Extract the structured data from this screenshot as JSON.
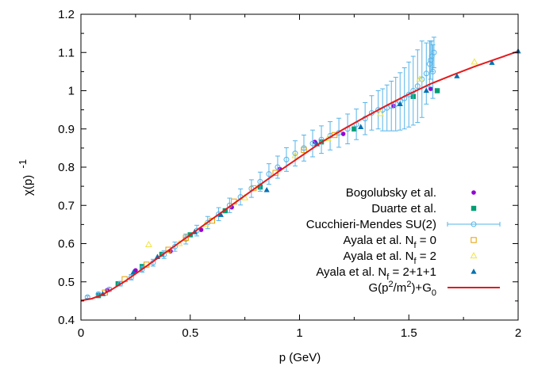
{
  "chart_data": {
    "type": "scatter",
    "xlabel": "p (GeV)",
    "ylabel_main": "χ(p)",
    "ylabel_sup": "-1",
    "xlim": [
      0,
      2
    ],
    "ylim": [
      0.4,
      1.2
    ],
    "x_ticks": [
      "0",
      "0.5",
      "1",
      "1.5",
      "2"
    ],
    "y_ticks": [
      "0.4",
      "0.5",
      "0.6",
      "0.7",
      "0.8",
      "0.9",
      "1",
      "1.1",
      "1.2"
    ],
    "grid": false,
    "legend_position": "bottom-right",
    "series": [
      {
        "name": "Bogolubsky et al.",
        "marker": "filled-circle",
        "color": "#9400d3",
        "points": [
          [
            0.12,
            0.478
          ],
          [
            0.25,
            0.53
          ],
          [
            0.41,
            0.58
          ],
          [
            0.55,
            0.636
          ],
          [
            0.69,
            0.695
          ],
          [
            0.91,
            0.795
          ],
          [
            1.07,
            0.866
          ],
          [
            1.2,
            0.887
          ],
          [
            1.43,
            0.96
          ],
          [
            1.6,
            1.005
          ]
        ]
      },
      {
        "name": "Duarte et al.",
        "marker": "filled-square",
        "color": "#009e73",
        "points": [
          [
            0.08,
            0.464
          ],
          [
            0.17,
            0.495
          ],
          [
            0.28,
            0.54
          ],
          [
            0.37,
            0.572
          ],
          [
            0.5,
            0.623
          ],
          [
            0.66,
            0.686
          ],
          [
            0.82,
            0.748
          ],
          [
            1.1,
            0.866
          ],
          [
            1.25,
            0.9
          ],
          [
            1.52,
            0.985
          ],
          [
            1.63,
            1.0
          ]
        ]
      },
      {
        "name": "Cucchieri-Mendes SU(2)",
        "marker": "open-circle",
        "color": "#56b4e9",
        "error_bars": true,
        "points": [
          [
            0.03,
            0.46,
            0.003
          ],
          [
            0.08,
            0.468,
            0.004
          ],
          [
            0.13,
            0.48,
            0.005
          ],
          [
            0.18,
            0.495,
            0.006
          ],
          [
            0.23,
            0.512,
            0.007
          ],
          [
            0.28,
            0.533,
            0.008
          ],
          [
            0.33,
            0.55,
            0.009
          ],
          [
            0.38,
            0.571,
            0.01
          ],
          [
            0.43,
            0.592,
            0.012
          ],
          [
            0.48,
            0.612,
            0.013
          ],
          [
            0.53,
            0.634,
            0.014
          ],
          [
            0.58,
            0.655,
            0.016
          ],
          [
            0.63,
            0.677,
            0.017
          ],
          [
            0.68,
            0.7,
            0.019
          ],
          [
            0.73,
            0.722,
            0.021
          ],
          [
            0.78,
            0.744,
            0.023
          ],
          [
            0.82,
            0.762,
            0.025
          ],
          [
            0.86,
            0.782,
            0.027
          ],
          [
            0.9,
            0.8,
            0.029
          ],
          [
            0.94,
            0.82,
            0.031
          ],
          [
            0.98,
            0.836,
            0.033
          ],
          [
            1.02,
            0.85,
            0.034
          ],
          [
            1.06,
            0.862,
            0.035
          ],
          [
            1.1,
            0.872,
            0.036
          ],
          [
            1.14,
            0.882,
            0.037
          ],
          [
            1.18,
            0.89,
            0.038
          ],
          [
            1.22,
            0.9,
            0.039
          ],
          [
            1.26,
            0.912,
            0.04
          ],
          [
            1.3,
            0.927,
            0.042
          ],
          [
            1.33,
            0.942,
            0.045
          ],
          [
            1.36,
            0.95,
            0.05
          ],
          [
            1.38,
            0.95,
            0.055
          ],
          [
            1.4,
            0.955,
            0.06
          ],
          [
            1.42,
            0.96,
            0.065
          ],
          [
            1.44,
            0.965,
            0.07
          ],
          [
            1.46,
            0.972,
            0.075
          ],
          [
            1.48,
            0.98,
            0.08
          ],
          [
            1.5,
            0.99,
            0.085
          ],
          [
            1.52,
            1.0,
            0.09
          ],
          [
            1.54,
            1.012,
            0.095
          ],
          [
            1.56,
            1.03,
            0.1
          ],
          [
            1.58,
            1.045,
            0.08
          ],
          [
            1.595,
            1.07,
            0.06
          ],
          [
            1.6,
            1.08,
            0.05
          ],
          [
            1.605,
            1.09,
            0.04
          ],
          [
            1.61,
            1.05,
            0.07
          ],
          [
            1.615,
            1.1,
            0.04
          ]
        ]
      },
      {
        "name": "Ayala et al.  N_f = 0",
        "marker": "open-square",
        "color": "#e69f00",
        "points": [
          [
            0.11,
            0.472
          ],
          [
            0.2,
            0.507
          ],
          [
            0.3,
            0.545
          ],
          [
            0.4,
            0.584
          ],
          [
            0.48,
            0.615
          ],
          [
            0.6,
            0.66
          ],
          [
            0.7,
            0.71
          ],
          [
            0.79,
            0.745
          ],
          [
            0.89,
            0.785
          ],
          [
            1.02,
            0.845
          ],
          [
            1.16,
            0.884
          ]
        ]
      },
      {
        "name": "Ayala et al.  N_f = 2",
        "marker": "open-triangle",
        "color": "#f0e442",
        "points": [
          [
            0.31,
            0.597
          ],
          [
            0.45,
            0.6
          ],
          [
            0.57,
            0.65
          ],
          [
            0.75,
            0.72
          ],
          [
            0.98,
            0.83
          ],
          [
            1.13,
            0.875
          ],
          [
            1.37,
            0.94
          ],
          [
            1.55,
            1.03
          ],
          [
            1.8,
            1.075
          ]
        ]
      },
      {
        "name": "Ayala et al.  N_f = 2+1+1",
        "marker": "filled-triangle",
        "color": "#0072b2",
        "points": [
          [
            0.1,
            0.468
          ],
          [
            0.24,
            0.525
          ],
          [
            0.35,
            0.565
          ],
          [
            0.52,
            0.63
          ],
          [
            0.64,
            0.675
          ],
          [
            0.85,
            0.74
          ],
          [
            1.08,
            0.86
          ],
          [
            1.28,
            0.905
          ],
          [
            1.46,
            0.965
          ],
          [
            1.58,
            1.0
          ],
          [
            1.72,
            1.038
          ],
          [
            1.88,
            1.073
          ],
          [
            2.0,
            1.103
          ]
        ]
      },
      {
        "name": "G(p²/m²)+G₀",
        "marker": "line",
        "color": "#e41a1c",
        "x": [
          0,
          0.05,
          0.1,
          0.15,
          0.2,
          0.3,
          0.4,
          0.5,
          0.6,
          0.7,
          0.8,
          0.9,
          1.0,
          1.1,
          1.2,
          1.3,
          1.4,
          1.5,
          1.6,
          1.7,
          1.8,
          1.9,
          2.0
        ],
        "y": [
          0.451,
          0.456,
          0.467,
          0.483,
          0.501,
          0.541,
          0.582,
          0.623,
          0.664,
          0.705,
          0.746,
          0.787,
          0.826,
          0.865,
          0.899,
          0.931,
          0.962,
          0.991,
          1.018,
          1.041,
          1.063,
          1.083,
          1.103
        ]
      }
    ],
    "legend_labels": [
      {
        "text": "Bogolubsky et al."
      },
      {
        "text": "Duarte et al."
      },
      {
        "text": "Cucchieri-Mendes SU(2)"
      },
      {
        "text": "Ayala et al.  N",
        "sub": "f",
        "tail": " = 0"
      },
      {
        "text": "Ayala et al.  N",
        "sub": "f",
        "tail": " = 2"
      },
      {
        "text": "Ayala et al.  N",
        "sub": "f",
        "tail": " = 2+1+1"
      },
      {
        "text": "G(p",
        "sup": "2",
        "mid": "/m",
        "sup2": "2",
        "mid2": ")+G",
        "sub": "0"
      }
    ]
  }
}
